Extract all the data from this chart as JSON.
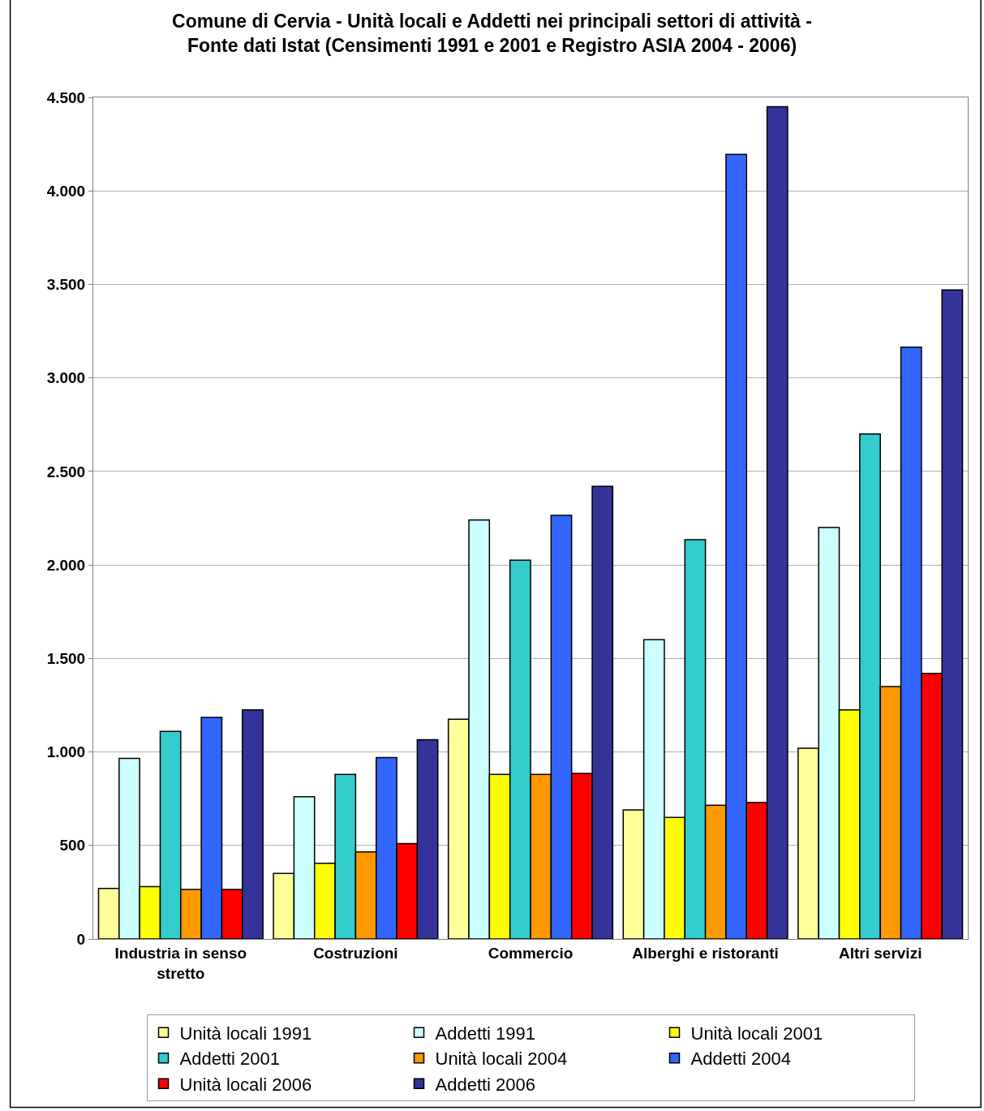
{
  "chart_data": {
    "type": "bar",
    "title": "Comune di Cervia - Unità locali e Addetti nei principali settori di attività - Fonte dati Istat (Censimenti 1991 e 2001 e Registro ASIA 2004 - 2006)",
    "categories": [
      "Industria in senso stretto",
      "Costruzioni",
      "Commercio",
      "Alberghi e ristoranti",
      "Altri servizi"
    ],
    "series": [
      {
        "name": "Unità locali 1991",
        "color": "#ffff99",
        "values": [
          270,
          350,
          1175,
          690,
          1020
        ]
      },
      {
        "name": "Addetti 1991",
        "color": "#ccffff",
        "values": [
          965,
          760,
          2240,
          1600,
          2200
        ]
      },
      {
        "name": "Unità locali 2001",
        "color": "#ffff00",
        "values": [
          280,
          405,
          880,
          650,
          1225
        ]
      },
      {
        "name": "Addetti 2001",
        "color": "#33cccc",
        "values": [
          1110,
          880,
          2025,
          2135,
          2700
        ]
      },
      {
        "name": "Unità locali 2004",
        "color": "#ff9900",
        "values": [
          265,
          465,
          880,
          715,
          1350
        ]
      },
      {
        "name": "Addetti 2004",
        "color": "#3366ff",
        "values": [
          1185,
          970,
          2265,
          4195,
          3165
        ]
      },
      {
        "name": "Unità locali 2006",
        "color": "#ff0000",
        "values": [
          265,
          510,
          885,
          730,
          1420
        ]
      },
      {
        "name": "Addetti 2006",
        "color": "#333399",
        "values": [
          1225,
          1065,
          2420,
          4450,
          3470
        ]
      }
    ],
    "ylim": [
      0,
      4500
    ],
    "yticks": [
      {
        "value": 0,
        "label": "0"
      },
      {
        "value": 500,
        "label": "500"
      },
      {
        "value": 1000,
        "label": "1.000"
      },
      {
        "value": 1500,
        "label": "1.500"
      },
      {
        "value": 2000,
        "label": "2.000"
      },
      {
        "value": 2500,
        "label": "2.500"
      },
      {
        "value": 3000,
        "label": "3.000"
      },
      {
        "value": 3500,
        "label": "3.500"
      },
      {
        "value": 4000,
        "label": "4.000"
      },
      {
        "value": 4500,
        "label": "4.500"
      }
    ],
    "grid": "y",
    "legend": "bottom"
  }
}
